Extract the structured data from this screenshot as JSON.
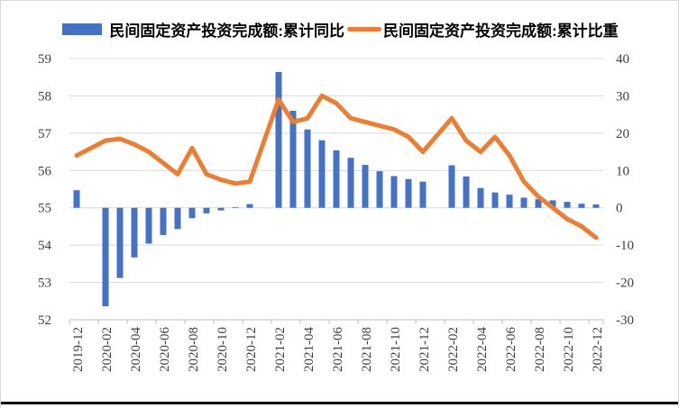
{
  "chart_data": {
    "type": "combo-bar-line",
    "categories": [
      "2019-12",
      "2020-01",
      "2020-02",
      "2020-03",
      "2020-04",
      "2020-05",
      "2020-06",
      "2020-07",
      "2020-08",
      "2020-09",
      "2020-10",
      "2020-11",
      "2020-12",
      "2021-01",
      "2021-02",
      "2021-03",
      "2021-04",
      "2021-05",
      "2021-06",
      "2021-07",
      "2021-08",
      "2021-09",
      "2021-10",
      "2021-11",
      "2021-12",
      "2022-01",
      "2022-02",
      "2022-03",
      "2022-04",
      "2022-05",
      "2022-06",
      "2022-07",
      "2022-08",
      "2022-09",
      "2022-10",
      "2022-11",
      "2022-12"
    ],
    "x_tick_labels": [
      "2019-12",
      "2020-02",
      "2020-04",
      "2020-06",
      "2020-08",
      "2020-10",
      "2020-12",
      "2021-02",
      "2021-04",
      "2021-06",
      "2021-08",
      "2021-10",
      "2021-12",
      "2022-02",
      "2022-04",
      "2022-06",
      "2022-08",
      "2022-10",
      "2022-12"
    ],
    "series": [
      {
        "name": "民间固定资产投资完成额:累计同比",
        "type": "bar",
        "axis": "right",
        "color": "#4472C4",
        "values": [
          4.7,
          null,
          -26.4,
          -18.8,
          -13.3,
          -9.6,
          -7.3,
          -5.7,
          -2.8,
          -1.5,
          -0.7,
          0.2,
          1.0,
          null,
          36.4,
          26.0,
          21.0,
          18.1,
          15.4,
          13.4,
          11.5,
          9.8,
          8.5,
          7.7,
          7.0,
          null,
          11.4,
          8.4,
          5.3,
          4.1,
          3.5,
          2.7,
          2.3,
          2.0,
          1.6,
          1.1,
          0.9
        ]
      },
      {
        "name": "民间固定资产投资完成额:累计比重",
        "type": "line",
        "axis": "left",
        "color": "#ED7D31",
        "values": [
          56.4,
          null,
          56.8,
          56.85,
          56.7,
          56.5,
          56.2,
          55.9,
          56.6,
          55.9,
          55.75,
          55.65,
          55.7,
          null,
          57.9,
          57.3,
          57.4,
          58.0,
          57.8,
          57.4,
          57.3,
          57.2,
          57.1,
          56.9,
          56.5,
          null,
          57.4,
          56.8,
          56.5,
          56.9,
          56.4,
          55.7,
          55.3,
          55.0,
          54.7,
          54.5,
          54.2
        ]
      }
    ],
    "left_axis": {
      "min": 52,
      "max": 59,
      "ticks": [
        52,
        53,
        54,
        55,
        56,
        57,
        58,
        59
      ]
    },
    "right_axis": {
      "min": -30,
      "max": 40,
      "ticks": [
        -30,
        -20,
        -10,
        0,
        10,
        20,
        30,
        40
      ]
    },
    "grid": true,
    "legend_position": "top"
  }
}
